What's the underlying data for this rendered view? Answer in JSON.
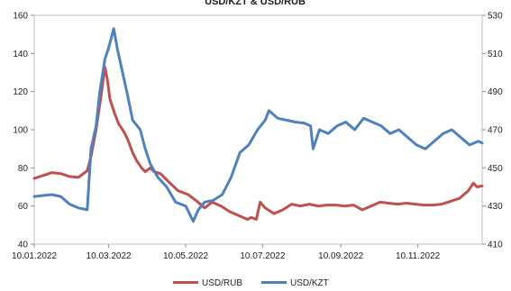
{
  "chart_data": {
    "type": "line",
    "title": "USD/KZT & USD/RUB",
    "x_tick_labels": [
      "10.01.2022",
      "10.03.2022",
      "10.05.2022",
      "10.07.2022",
      "10.09.2022",
      "10.11.2022"
    ],
    "x_ticks": [
      "2022-01-10",
      "2022-03-10",
      "2022-05-10",
      "2022-07-10",
      "2022-09-10",
      "2022-11-10"
    ],
    "x_range": [
      "2022-01-10",
      "2022-12-31"
    ],
    "y_left": {
      "min": 40,
      "max": 160,
      "step": 20,
      "series": "USD/RUB"
    },
    "y_right": {
      "min": 410,
      "max": 530,
      "step": 20,
      "series": "USD/KZT"
    },
    "grid": false,
    "legend_position": "bottom",
    "series": [
      {
        "name": "USD/RUB",
        "axis": "left",
        "color": "#c0504d",
        "points": [
          [
            "2022-01-10",
            74.5
          ],
          [
            "2022-01-17",
            76.0
          ],
          [
            "2022-01-24",
            77.5
          ],
          [
            "2022-01-31",
            77.0
          ],
          [
            "2022-02-07",
            75.5
          ],
          [
            "2022-02-14",
            75.0
          ],
          [
            "2022-02-21",
            78.5
          ],
          [
            "2022-02-24",
            86.0
          ],
          [
            "2022-02-28",
            100.0
          ],
          [
            "2022-03-04",
            118.0
          ],
          [
            "2022-03-07",
            133.0
          ],
          [
            "2022-03-09",
            126.0
          ],
          [
            "2022-03-11",
            116.0
          ],
          [
            "2022-03-15",
            108.0
          ],
          [
            "2022-03-18",
            103.0
          ],
          [
            "2022-03-22",
            99.0
          ],
          [
            "2022-03-25",
            95.0
          ],
          [
            "2022-03-29",
            88.0
          ],
          [
            "2022-04-01",
            84.0
          ],
          [
            "2022-04-05",
            80.0
          ],
          [
            "2022-04-08",
            78.0
          ],
          [
            "2022-04-12",
            80.0
          ],
          [
            "2022-04-15",
            78.0
          ],
          [
            "2022-04-20",
            77.0
          ],
          [
            "2022-04-26",
            73.0
          ],
          [
            "2022-05-04",
            68.0
          ],
          [
            "2022-05-12",
            66.0
          ],
          [
            "2022-05-18",
            63.0
          ],
          [
            "2022-05-25",
            59.0
          ],
          [
            "2022-05-31",
            62.0
          ],
          [
            "2022-06-07",
            60.0
          ],
          [
            "2022-06-14",
            57.0
          ],
          [
            "2022-06-21",
            55.0
          ],
          [
            "2022-06-28",
            53.0
          ],
          [
            "2022-07-01",
            54.0
          ],
          [
            "2022-07-05",
            53.0
          ],
          [
            "2022-07-08",
            62.0
          ],
          [
            "2022-07-12",
            59.0
          ],
          [
            "2022-07-19",
            56.0
          ],
          [
            "2022-07-26",
            58.0
          ],
          [
            "2022-08-02",
            61.0
          ],
          [
            "2022-08-09",
            60.0
          ],
          [
            "2022-08-16",
            61.0
          ],
          [
            "2022-08-23",
            60.0
          ],
          [
            "2022-08-30",
            60.5
          ],
          [
            "2022-09-06",
            60.5
          ],
          [
            "2022-09-13",
            60.0
          ],
          [
            "2022-09-20",
            60.5
          ],
          [
            "2022-09-27",
            58.0
          ],
          [
            "2022-10-04",
            60.0
          ],
          [
            "2022-10-11",
            62.0
          ],
          [
            "2022-10-18",
            61.5
          ],
          [
            "2022-10-25",
            61.0
          ],
          [
            "2022-11-01",
            61.5
          ],
          [
            "2022-11-08",
            61.0
          ],
          [
            "2022-11-15",
            60.5
          ],
          [
            "2022-11-22",
            60.5
          ],
          [
            "2022-11-29",
            61.0
          ],
          [
            "2022-12-06",
            62.5
          ],
          [
            "2022-12-13",
            64.0
          ],
          [
            "2022-12-20",
            68.0
          ],
          [
            "2022-12-24",
            72.0
          ],
          [
            "2022-12-27",
            70.0
          ],
          [
            "2022-12-31",
            70.5
          ]
        ]
      },
      {
        "name": "USD/KZT",
        "axis": "right",
        "color": "#4f81bd",
        "points": [
          [
            "2022-01-10",
            435.0
          ],
          [
            "2022-01-17",
            435.5
          ],
          [
            "2022-01-24",
            436.0
          ],
          [
            "2022-01-31",
            435.0
          ],
          [
            "2022-02-07",
            431.0
          ],
          [
            "2022-02-14",
            429.0
          ],
          [
            "2022-02-21",
            428.0
          ],
          [
            "2022-02-24",
            460.0
          ],
          [
            "2022-02-28",
            472.0
          ],
          [
            "2022-03-03",
            490.0
          ],
          [
            "2022-03-07",
            507.0
          ],
          [
            "2022-03-10",
            513.0
          ],
          [
            "2022-03-14",
            523.0
          ],
          [
            "2022-03-17",
            512.0
          ],
          [
            "2022-03-21",
            500.0
          ],
          [
            "2022-03-25",
            488.0
          ],
          [
            "2022-03-29",
            475.0
          ],
          [
            "2022-04-04",
            470.0
          ],
          [
            "2022-04-08",
            460.0
          ],
          [
            "2022-04-12",
            452.0
          ],
          [
            "2022-04-18",
            445.0
          ],
          [
            "2022-04-25",
            440.0
          ],
          [
            "2022-05-02",
            432.0
          ],
          [
            "2022-05-10",
            430.0
          ],
          [
            "2022-05-16",
            422.0
          ],
          [
            "2022-05-20",
            428.0
          ],
          [
            "2022-05-25",
            432.0
          ],
          [
            "2022-06-01",
            433.0
          ],
          [
            "2022-06-08",
            436.0
          ],
          [
            "2022-06-15",
            445.0
          ],
          [
            "2022-06-22",
            458.0
          ],
          [
            "2022-06-29",
            462.0
          ],
          [
            "2022-07-06",
            470.0
          ],
          [
            "2022-07-12",
            475.0
          ],
          [
            "2022-07-15",
            480.0
          ],
          [
            "2022-07-22",
            476.0
          ],
          [
            "2022-07-29",
            475.0
          ],
          [
            "2022-08-05",
            474.0
          ],
          [
            "2022-08-12",
            473.5
          ],
          [
            "2022-08-17",
            472.0
          ],
          [
            "2022-08-19",
            460.0
          ],
          [
            "2022-08-24",
            470.0
          ],
          [
            "2022-08-31",
            468.0
          ],
          [
            "2022-09-07",
            472.0
          ],
          [
            "2022-09-14",
            474.0
          ],
          [
            "2022-09-21",
            470.0
          ],
          [
            "2022-09-28",
            476.0
          ],
          [
            "2022-10-05",
            474.0
          ],
          [
            "2022-10-12",
            472.0
          ],
          [
            "2022-10-19",
            468.0
          ],
          [
            "2022-10-26",
            470.0
          ],
          [
            "2022-11-02",
            466.0
          ],
          [
            "2022-11-09",
            462.0
          ],
          [
            "2022-11-16",
            460.0
          ],
          [
            "2022-11-23",
            464.0
          ],
          [
            "2022-11-30",
            468.0
          ],
          [
            "2022-12-07",
            470.0
          ],
          [
            "2022-12-14",
            466.0
          ],
          [
            "2022-12-21",
            462.0
          ],
          [
            "2022-12-28",
            464.0
          ],
          [
            "2022-12-31",
            463.0
          ]
        ]
      }
    ]
  }
}
